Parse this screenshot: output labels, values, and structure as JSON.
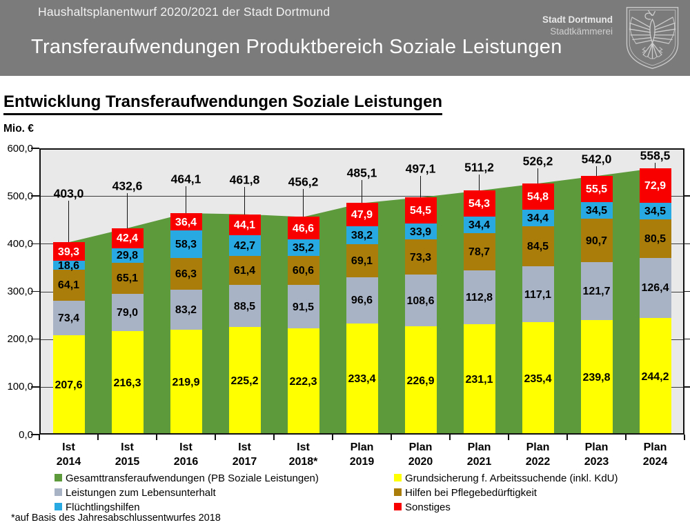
{
  "header": {
    "bg": "#7b7b7b",
    "small_title": "Haushaltsplanentwurf 2020/2021 der Stadt Dortmund",
    "title": "Transferaufwendungen Produktbereich Soziale Leistungen",
    "org": {
      "name": "Stadt Dortmund",
      "sub": "Stadtkämmerei"
    },
    "crest_icon": "dortmund-eagle-crest"
  },
  "section": {
    "title": "Entwicklung Transferaufwendungen Soziale Leistungen",
    "unit_label": "Mio. €",
    "footnote": "*auf Basis des Jahresabschlussentwurfes 2018"
  },
  "chart_data": {
    "type": "bar",
    "subtype": "stacked-bars-with-total-area-behind",
    "unit": "Mio. €",
    "categories": [
      "Ist 2014",
      "Ist 2015",
      "Ist 2016",
      "Ist 2017",
      "Ist 2018*",
      "Plan 2019",
      "Plan 2020",
      "Plan 2021",
      "Plan 2022",
      "Plan 2023",
      "Plan 2024"
    ],
    "ylim": [
      0,
      600
    ],
    "ytick_step": 100,
    "grid": true,
    "value_format": "german-comma-one-decimal",
    "plot_bg": "#e9e9e9",
    "series": [
      {
        "name": "Grundsicherung f. Arbeitssuchende (inkl. KdU)",
        "color": "#ffff00",
        "label_color": "#000000",
        "values": [
          207.6,
          216.3,
          219.9,
          225.2,
          222.3,
          233.4,
          226.9,
          231.1,
          235.4,
          239.8,
          244.2
        ]
      },
      {
        "name": "Leistungen zum Lebensunterhalt",
        "color": "#a9b3c6",
        "label_color": "#000000",
        "values": [
          73.4,
          79.0,
          83.2,
          88.5,
          91.5,
          96.6,
          108.6,
          112.8,
          117.1,
          121.7,
          126.4
        ]
      },
      {
        "name": "Hilfen bei Pflegebedürftigkeit",
        "color": "#aa7d0b",
        "label_color": "#000000",
        "values": [
          64.1,
          65.1,
          66.3,
          61.4,
          60.6,
          69.1,
          73.3,
          78.7,
          84.5,
          90.7,
          80.5
        ]
      },
      {
        "name": "Flüchtlingshilfen",
        "color": "#29a9e1",
        "label_color": "#000000",
        "values": [
          18.6,
          29.8,
          58.3,
          42.7,
          35.2,
          38.2,
          33.9,
          34.4,
          34.4,
          34.5,
          34.5
        ]
      },
      {
        "name": "Sonstiges",
        "color": "#f90000",
        "label_color": "#ffffff",
        "values": [
          39.3,
          42.4,
          36.4,
          44.1,
          46.6,
          47.9,
          54.5,
          54.3,
          54.8,
          55.5,
          72.9
        ]
      }
    ],
    "total_series": {
      "name": "Gesamttransferaufwendungen (PB Soziale Leistungen)",
      "color": "#5c9a3c",
      "values": [
        403.0,
        432.6,
        464.1,
        461.8,
        456.2,
        485.1,
        497.1,
        511.2,
        526.2,
        542.0,
        558.5
      ]
    }
  },
  "legend": {
    "columns": [
      [
        {
          "label": "Gesamttransferaufwendungen (PB Soziale Leistungen)",
          "color": "#5c9a3c"
        },
        {
          "label": "Leistungen zum Lebensunterhalt",
          "color": "#a9b3c6"
        },
        {
          "label": "Flüchtlingshilfen",
          "color": "#29a9e1"
        }
      ],
      [
        {
          "label": "Grundsicherung f. Arbeitssuchende (inkl. KdU)",
          "color": "#ffff00"
        },
        {
          "label": "Hilfen bei Pflegebedürftigkeit",
          "color": "#aa7d0b"
        },
        {
          "label": "Sonstiges",
          "color": "#f90000"
        }
      ]
    ]
  }
}
